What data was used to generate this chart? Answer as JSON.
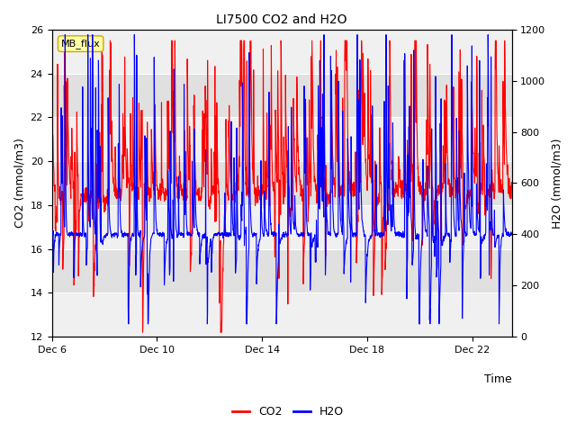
{
  "title": "LI7500 CO2 and H2O",
  "xlabel": "Time",
  "ylabel_left": "CO2 (mmol/m3)",
  "ylabel_right": "H2O (mmol/m3)",
  "ylim_left": [
    12,
    26
  ],
  "ylim_right": [
    0,
    1200
  ],
  "xlim": [
    0,
    17.5
  ],
  "xtick_positions": [
    0,
    4,
    8,
    12,
    16
  ],
  "xtick_labels": [
    "Dec 6",
    "Dec 10",
    "Dec 14",
    "Dec 18",
    "Dec 22"
  ],
  "yticks_left": [
    12,
    14,
    16,
    18,
    20,
    22,
    24,
    26
  ],
  "yticks_right": [
    0,
    200,
    400,
    600,
    800,
    1000,
    1200
  ],
  "legend_labels": [
    "CO2",
    "H2O"
  ],
  "mb_flux_label": "MB_flux",
  "background_color": "#ffffff",
  "co2_color": "#ff0000",
  "h2o_color": "#0000ff",
  "line_width": 0.8,
  "seed": 42,
  "n_points": 2000,
  "duration_days": 17.5,
  "band_light": "#f0f0f0",
  "band_dark": "#e0e0e0"
}
